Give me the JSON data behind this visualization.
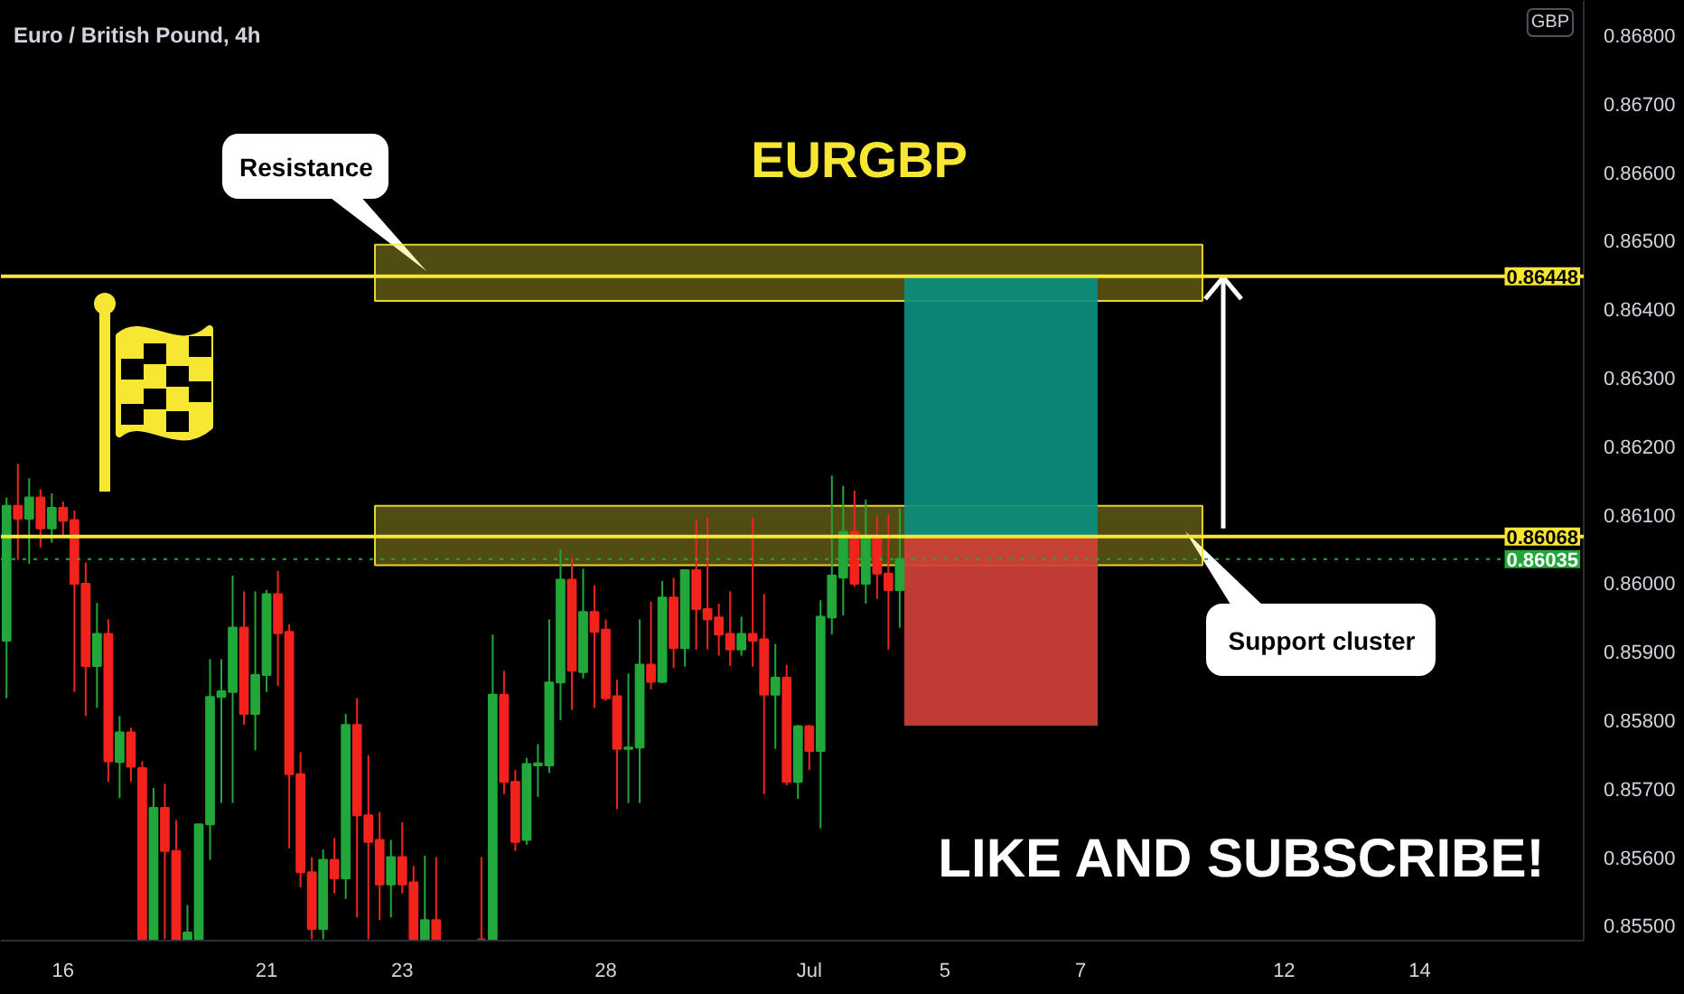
{
  "chart_data": {
    "type": "candlestick",
    "title": "Euro / British Pound, 4h",
    "ylabel": "GBP",
    "annotations": [
      "EURGBP",
      "LIKE AND SUBSCRIBE!"
    ],
    "categories": [
      null,
      null,
      null,
      null,
      null,
      "16",
      null,
      null,
      null,
      null,
      null,
      null,
      null,
      null,
      null,
      null,
      null,
      null,
      null,
      null,
      null,
      null,
      null,
      "21",
      null,
      null,
      null,
      null,
      null,
      null,
      null,
      null,
      null,
      null,
      null,
      "23",
      null,
      null,
      null,
      null,
      null,
      null,
      null,
      null,
      null,
      null,
      null,
      null,
      null,
      null,
      null,
      null,
      null,
      "28",
      null,
      null,
      null,
      null,
      null,
      null,
      null,
      null,
      null,
      null,
      null,
      null,
      null,
      null,
      null,
      null,
      null,
      "Jul",
      null,
      null,
      null,
      null,
      null,
      null,
      null,
      null,
      null,
      null,
      null,
      "5",
      null,
      null,
      null,
      null,
      null,
      null,
      null,
      null,
      null,
      null,
      null,
      "7",
      null,
      null,
      null,
      null,
      null,
      null,
      null,
      null,
      null,
      null,
      null,
      null,
      null,
      null,
      null,
      null,
      null,
      "12",
      null,
      null,
      null,
      null,
      null,
      null,
      null,
      null,
      null,
      null,
      null,
      "14",
      null,
      null,
      null,
      null,
      null,
      null,
      null,
      null,
      null,
      null,
      null,
      null,
      null,
      null
    ],
    "ylim": [
      0.85478,
      0.8685
    ],
    "yticks": [
      {
        "value": 0.855,
        "label": "0.85500"
      },
      {
        "value": 0.856,
        "label": "0.85600"
      },
      {
        "value": 0.857,
        "label": "0.85700"
      },
      {
        "value": 0.858,
        "label": "0.85800"
      },
      {
        "value": 0.859,
        "label": "0.85900"
      },
      {
        "value": 0.86,
        "label": "0.86000"
      },
      {
        "value": 0.861,
        "label": "0.86100"
      },
      {
        "value": 0.862,
        "label": "0.86200"
      },
      {
        "value": 0.863,
        "label": "0.86300"
      },
      {
        "value": 0.864,
        "label": "0.86400"
      },
      {
        "value": 0.865,
        "label": "0.86500"
      },
      {
        "value": 0.866,
        "label": "0.86600"
      },
      {
        "value": 0.867,
        "label": "0.86700"
      },
      {
        "value": 0.868,
        "label": "0.86800"
      }
    ],
    "grid": false,
    "ref_lines": [
      {
        "axis": "y",
        "value": 0.86448,
        "label": "0.86448",
        "color": "#f7e733",
        "line_style": "solid"
      },
      {
        "axis": "y",
        "value": 0.86068,
        "label": "0.86068",
        "color": "#f7e733",
        "line_style": "solid"
      },
      {
        "axis": "y",
        "value": 0.86035,
        "label": "0.86035",
        "color": "#22a83a",
        "line_style": "dotted"
      }
    ],
    "bands": [
      {
        "axis": "y",
        "from": 0.86412,
        "to": 0.86494,
        "label": "Resistance",
        "color": "#f7e733"
      },
      {
        "axis": "y",
        "from": 0.86026,
        "to": 0.86113,
        "label": "Support cluster",
        "color": "#f7e733"
      },
      {
        "axis": "y",
        "from": 0.86068,
        "to": 0.86448,
        "color": "#0b8f7f"
      },
      {
        "axis": "y",
        "from": 0.85792,
        "to": 0.86068,
        "color": "#d0403a"
      }
    ],
    "series": [
      {
        "ohlc": [
          [
            0.85916,
            0.86125,
            0.85832,
            0.86113
          ],
          [
            0.86113,
            0.86174,
            0.86034,
            0.86094
          ],
          [
            0.86094,
            0.86153,
            0.86028,
            0.86125
          ],
          [
            0.86125,
            0.86137,
            0.86052,
            0.8608
          ],
          [
            0.8608,
            0.86131,
            0.86059,
            0.8611
          ],
          [
            0.8611,
            0.86119,
            0.86069,
            0.86091
          ],
          [
            0.86092,
            0.86106,
            0.85841,
            0.85999
          ],
          [
            0.85999,
            0.8603,
            0.85806,
            0.85879
          ],
          [
            0.85879,
            0.85971,
            0.85818,
            0.85926
          ],
          [
            0.85926,
            0.85947,
            0.8571,
            0.8574
          ],
          [
            0.85739,
            0.85806,
            0.85686,
            0.85782
          ],
          [
            0.85782,
            0.85789,
            0.8571,
            0.85732
          ],
          [
            0.8573,
            0.8574,
            0.8548,
            0.8548
          ],
          [
            0.8548,
            0.85701,
            0.8548,
            0.85672
          ],
          [
            0.85672,
            0.85707,
            0.8548,
            0.85609
          ],
          [
            0.85609,
            0.85654,
            0.8548,
            0.8548
          ],
          [
            0.8548,
            0.8553,
            0.8548,
            0.8549
          ],
          [
            0.8548,
            0.85648,
            0.8548,
            0.85648
          ],
          [
            0.85648,
            0.85889,
            0.85596,
            0.85834
          ],
          [
            0.85834,
            0.85889,
            0.85679,
            0.85842
          ],
          [
            0.85841,
            0.86011,
            0.85679,
            0.85935
          ],
          [
            0.85935,
            0.85988,
            0.85793,
            0.85809
          ],
          [
            0.85809,
            0.85988,
            0.85756,
            0.85866
          ],
          [
            0.85866,
            0.8599,
            0.85841,
            0.85984
          ],
          [
            0.85984,
            0.86018,
            0.8585,
            0.85927
          ],
          [
            0.85929,
            0.8594,
            0.85613,
            0.85721
          ],
          [
            0.85721,
            0.85753,
            0.85556,
            0.85578
          ],
          [
            0.85578,
            0.856,
            0.8548,
            0.85495
          ],
          [
            0.85495,
            0.85611,
            0.8548,
            0.85596
          ],
          [
            0.85596,
            0.85628,
            0.85547,
            0.85569
          ],
          [
            0.85569,
            0.85809,
            0.85539,
            0.85793
          ],
          [
            0.85793,
            0.85832,
            0.85512,
            0.85661
          ],
          [
            0.85661,
            0.85749,
            0.8548,
            0.85622
          ],
          [
            0.85625,
            0.85666,
            0.85508,
            0.8556
          ],
          [
            0.8556,
            0.85625,
            0.85512,
            0.856
          ],
          [
            0.856,
            0.85651,
            0.85547,
            0.8556
          ],
          [
            0.85563,
            0.85587,
            0.8548,
            0.8548
          ],
          [
            0.8548,
            0.85602,
            0.8548,
            0.85508
          ],
          [
            0.85508,
            0.856,
            0.8548,
            0.8548
          ],
          null,
          null,
          null,
          [
            0.8548,
            0.856,
            0.8548,
            0.8548
          ],
          [
            0.8548,
            0.85925,
            0.8548,
            0.85837
          ],
          [
            0.85837,
            0.85872,
            0.85692,
            0.8571
          ],
          [
            0.8571,
            0.85727,
            0.85609,
            0.85622
          ],
          [
            0.85625,
            0.85745,
            0.85618,
            0.85736
          ],
          [
            0.85734,
            0.85765,
            0.85688,
            0.85737
          ],
          [
            0.85734,
            0.85947,
            0.85723,
            0.85855
          ],
          [
            0.85855,
            0.86049,
            0.858,
            0.86005
          ],
          [
            0.86005,
            0.86037,
            0.85815,
            0.85872
          ],
          [
            0.8587,
            0.86021,
            0.85861,
            0.85958
          ],
          [
            0.85958,
            0.85997,
            0.85818,
            0.85929
          ],
          [
            0.85932,
            0.85947,
            0.85828,
            0.85832
          ],
          [
            0.85835,
            0.85859,
            0.8567,
            0.85758
          ],
          [
            0.85758,
            0.85868,
            0.85679,
            0.8576
          ],
          [
            0.8576,
            0.85947,
            0.85679,
            0.85881
          ],
          [
            0.85881,
            0.85973,
            0.85845,
            0.85856
          ],
          [
            0.85856,
            0.86003,
            0.85854,
            0.85979
          ],
          [
            0.85979,
            0.86008,
            0.85876,
            0.85905
          ],
          [
            0.85905,
            0.86019,
            0.85878,
            0.86019
          ],
          [
            0.86019,
            0.86093,
            0.85903,
            0.85962
          ],
          [
            0.85962,
            0.86096,
            0.85903,
            0.85947
          ],
          [
            0.8595,
            0.8597,
            0.85894,
            0.85925
          ],
          [
            0.85926,
            0.85988,
            0.85879,
            0.85903
          ],
          [
            0.85903,
            0.85951,
            0.85894,
            0.85926
          ],
          [
            0.85926,
            0.86096,
            0.85878,
            0.85916
          ],
          [
            0.85918,
            0.85984,
            0.85692,
            0.85837
          ],
          [
            0.85837,
            0.85911,
            0.85758,
            0.85862
          ],
          [
            0.85862,
            0.85881,
            0.85705,
            0.8571
          ],
          [
            0.8571,
            0.85793,
            0.85685,
            0.85791
          ],
          [
            0.85791,
            0.85793,
            0.85727,
            0.85755
          ],
          [
            0.85755,
            0.85975,
            0.85642,
            0.85951
          ],
          [
            0.8595,
            0.86157,
            0.85925,
            0.86011
          ],
          [
            0.86008,
            0.86142,
            0.85953,
            0.86075
          ],
          [
            0.86075,
            0.86135,
            0.85995,
            0.85999
          ],
          [
            0.85999,
            0.86122,
            0.8597,
            0.86066
          ],
          [
            0.86066,
            0.86098,
            0.85977,
            0.86014
          ],
          [
            0.86014,
            0.861,
            0.85903,
            0.8599
          ],
          [
            0.8599,
            0.86109,
            0.85935,
            0.86035
          ],
          null,
          null,
          null,
          null,
          null,
          null,
          null,
          null,
          null,
          null,
          null,
          null,
          null,
          null,
          null,
          null,
          null,
          null,
          null,
          null,
          null,
          null,
          null,
          null,
          null,
          null,
          null,
          null,
          null,
          null,
          null,
          null,
          null,
          null,
          null,
          null,
          null,
          null,
          null,
          null,
          null,
          null,
          null,
          null,
          null,
          null,
          null,
          null,
          null,
          null,
          null,
          null,
          null,
          null,
          null,
          null,
          null,
          null,
          null,
          null
        ],
        "colors": [
          "#22a83a",
          "#f2231d",
          "#22a83a",
          "#f2231d",
          "#22a83a",
          "#f2231d",
          "#f2231d",
          "#f2231d",
          "#22a83a",
          "#f2231d",
          "#22a83a",
          "#f2231d",
          "#f2231d",
          "#22a83a",
          "#f2231d",
          "#f2231d",
          "#22a83a",
          "#22a83a",
          "#22a83a",
          "#22a83a",
          "#22a83a",
          "#f2231d",
          "#22a83a",
          "#22a83a",
          "#f2231d",
          "#f2231d",
          "#f2231d",
          "#f2231d",
          "#22a83a",
          "#f2231d",
          "#22a83a",
          "#f2231d",
          "#f2231d",
          "#f2231d",
          "#22a83a",
          "#f2231d",
          "#f2231d",
          "#22a83a",
          "#f2231d",
          null,
          null,
          null,
          "#f2231d",
          "#22a83a",
          "#f2231d",
          "#f2231d",
          "#22a83a",
          "#22a83a",
          "#22a83a",
          "#22a83a",
          "#f2231d",
          "#22a83a",
          "#f2231d",
          "#f2231d",
          "#f2231d",
          "#22a83a",
          "#22a83a",
          "#f2231d",
          "#22a83a",
          "#f2231d",
          "#22a83a",
          "#f2231d",
          "#f2231d",
          "#f2231d",
          "#f2231d",
          "#22a83a",
          "#f2231d",
          "#f2231d",
          "#22a83a",
          "#f2231d",
          "#22a83a",
          "#f2231d",
          "#22a83a",
          "#22a83a",
          "#22a83a",
          "#f2231d",
          "#22a83a",
          "#f2231d",
          "#f2231d",
          "#22a83a",
          null,
          null,
          null,
          null,
          null,
          null,
          null,
          null,
          null,
          null,
          null,
          null,
          null,
          null,
          null,
          null,
          null,
          null,
          null,
          null,
          null,
          null,
          null,
          null,
          null,
          null,
          null,
          null,
          null,
          null,
          null,
          null,
          null,
          null,
          null,
          null,
          null,
          null,
          null,
          null,
          null,
          null,
          null,
          null,
          null,
          null,
          null,
          null,
          null,
          null,
          null,
          null,
          null,
          null,
          null,
          null,
          null,
          null,
          null,
          null
        ]
      }
    ]
  }
}
